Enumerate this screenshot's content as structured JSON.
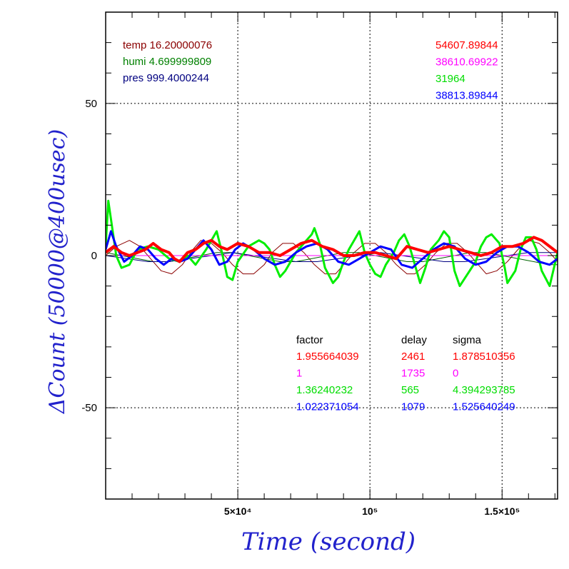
{
  "chart_data": {
    "type": "line",
    "xlabel": "Time (second)",
    "ylabel": "ΔCount (50000@400usec)",
    "xlim": [
      0,
      171000
    ],
    "ylim": [
      -80,
      80
    ],
    "grid": true,
    "x_ticks": [
      {
        "value": 50000,
        "label": "5×10⁴"
      },
      {
        "value": 100000,
        "label": "10⁵"
      },
      {
        "value": 150000,
        "label": "1.5×10⁵"
      }
    ],
    "y_ticks": [
      {
        "value": 50,
        "label": "50"
      },
      {
        "value": 0,
        "label": "0"
      },
      {
        "value": -50,
        "label": "-50"
      }
    ],
    "env_labels": [
      {
        "text": "temp 16.20000076",
        "color": "#8b0000"
      },
      {
        "text": "humi 4.699999809",
        "color": "#008000"
      },
      {
        "text": "pres 999.4000244",
        "color": "#000080"
      }
    ],
    "means": [
      {
        "text": "54607.89844",
        "color": "#ff0000"
      },
      {
        "text": "38610.69922",
        "color": "#ff00ff"
      },
      {
        "text": "31964",
        "color": "#00dd00"
      },
      {
        "text": "38813.89844",
        "color": "#0000ff"
      }
    ],
    "stats_table": {
      "headers": [
        "factor",
        "delay",
        "sigma"
      ],
      "rows": [
        {
          "color": "#ff0000",
          "cells": [
            "1.955664039",
            "2461",
            "1.878510356"
          ]
        },
        {
          "color": "#ff00ff",
          "cells": [
            "1",
            "1735",
            "0"
          ]
        },
        {
          "color": "#00dd00",
          "cells": [
            "1.36240232",
            "565",
            "4.394293785"
          ]
        },
        {
          "color": "#0000ff",
          "cells": [
            "1.022371054",
            "1079",
            "1.525640249"
          ]
        }
      ]
    },
    "series": [
      {
        "color": "#8b0000",
        "width": 1,
        "x": [
          0,
          4000,
          9000,
          13000,
          17000,
          21000,
          25000,
          29000,
          33000,
          36000,
          40000,
          44000,
          48000,
          52000,
          56000,
          60000,
          63000,
          67000,
          71000,
          75000,
          79000,
          83000,
          87000,
          90000,
          94000,
          98000,
          102000,
          106000,
          110000,
          114000,
          117000,
          121000,
          125000,
          129000,
          133000,
          137000,
          141000,
          144000,
          148000,
          152000,
          156000,
          160000,
          164000,
          168000,
          171000
        ],
        "y": [
          0,
          3,
          5,
          3,
          -1,
          -5,
          -6,
          -3,
          2,
          5,
          4,
          1,
          -3,
          -6,
          -6,
          -3,
          1,
          4,
          4,
          1,
          -3,
          -6,
          -6,
          -3,
          1,
          4,
          4,
          1,
          -3,
          -6,
          -6,
          -3,
          1,
          4,
          4,
          1,
          -3,
          -6,
          -5,
          -2,
          2,
          5,
          4,
          1,
          -2
        ]
      },
      {
        "color": "#006400",
        "width": 1,
        "x": [
          0,
          6000,
          12000,
          18000,
          24000,
          30000,
          36000,
          42000,
          48000,
          54000,
          60000,
          66000,
          72000,
          78000,
          84000,
          90000,
          96000,
          102000,
          108000,
          114000,
          120000,
          126000,
          132000,
          138000,
          144000,
          150000,
          156000,
          162000,
          168000,
          171000
        ],
        "y": [
          1,
          0,
          -1,
          -2,
          -2,
          -1,
          0,
          1,
          1,
          0,
          -1,
          -2,
          -2,
          -1,
          0,
          1,
          1,
          0,
          -1,
          -2,
          -2,
          -1,
          0,
          1,
          1,
          0,
          -1,
          -2,
          -3,
          -3
        ]
      },
      {
        "color": "#000080",
        "width": 1,
        "x": [
          0,
          8000,
          16000,
          24000,
          32000,
          40000,
          48000,
          56000,
          64000,
          72000,
          80000,
          88000,
          96000,
          104000,
          112000,
          120000,
          128000,
          136000,
          144000,
          152000,
          160000,
          168000,
          171000
        ],
        "y": [
          0,
          -1,
          -2,
          -2,
          -1,
          0,
          1,
          0,
          -1,
          -2,
          -2,
          -1,
          0,
          1,
          0,
          -1,
          -2,
          -2,
          -1,
          0,
          1,
          1,
          1
        ]
      },
      {
        "color": "#ff00ff",
        "width": 1,
        "x": [
          0,
          171000
        ],
        "y": [
          0,
          0
        ]
      },
      {
        "color": "#00ee00",
        "width": 3,
        "x": [
          0,
          1000,
          2000,
          4000,
          6000,
          9000,
          12000,
          16000,
          20000,
          24000,
          28000,
          31000,
          34000,
          38000,
          40000,
          42000,
          44000,
          46000,
          48000,
          50000,
          54000,
          58000,
          60000,
          62000,
          64000,
          66000,
          68000,
          70000,
          72000,
          75000,
          78000,
          79000,
          81000,
          83000,
          86000,
          88000,
          90000,
          92000,
          94000,
          96000,
          98000,
          100000,
          102000,
          104000,
          106000,
          109000,
          111000,
          113000,
          115000,
          118000,
          119000,
          121000,
          123000,
          126000,
          128000,
          130000,
          132000,
          134000,
          137000,
          140000,
          142000,
          144000,
          146000,
          149000,
          151000,
          152000,
          155000,
          157000,
          159000,
          161000,
          163000,
          165000,
          168000,
          171000
        ],
        "y": [
          3,
          18,
          12,
          0,
          -4,
          -3,
          2,
          3,
          2,
          -1,
          -2,
          0,
          -3,
          2,
          5,
          8,
          1,
          -7,
          -8,
          -2,
          3,
          5,
          4,
          2,
          -3,
          -7,
          -5,
          -2,
          1,
          4,
          7,
          9,
          4,
          -4,
          -9,
          -7,
          -2,
          2,
          5,
          8,
          1,
          -3,
          -6,
          -7,
          -3,
          1,
          5,
          7,
          3,
          -6,
          -9,
          -4,
          2,
          5,
          8,
          6,
          -5,
          -10,
          -6,
          -2,
          3,
          6,
          7,
          4,
          -4,
          -9,
          -5,
          2,
          6,
          6,
          2,
          -5,
          -10,
          1
        ]
      },
      {
        "color": "#0000ff",
        "width": 3,
        "x": [
          0,
          2000,
          4000,
          7000,
          10000,
          13000,
          16000,
          19000,
          22000,
          25000,
          28000,
          31000,
          34000,
          37000,
          40000,
          43000,
          46000,
          49000,
          52000,
          56000,
          60000,
          64000,
          68000,
          72000,
          76000,
          80000,
          84000,
          88000,
          92000,
          96000,
          100000,
          104000,
          108000,
          112000,
          116000,
          120000,
          124000,
          128000,
          132000,
          136000,
          140000,
          144000,
          148000,
          152000,
          156000,
          160000,
          164000,
          168000,
          171000
        ],
        "y": [
          2,
          8,
          3,
          -2,
          0,
          3,
          2,
          -1,
          -3,
          -1,
          -2,
          -1,
          2,
          5,
          2,
          -3,
          -2,
          2,
          4,
          2,
          -1,
          -3,
          -2,
          1,
          3,
          4,
          2,
          -2,
          -3,
          -1,
          1,
          3,
          2,
          -3,
          -4,
          -1,
          2,
          4,
          3,
          -1,
          -3,
          -2,
          1,
          3,
          3,
          1,
          -2,
          -3,
          -1
        ]
      },
      {
        "color": "#ff0000",
        "width": 4,
        "x": [
          0,
          3000,
          6000,
          9000,
          12000,
          15000,
          18000,
          21000,
          24000,
          26000,
          28000,
          31000,
          34000,
          37000,
          40000,
          43000,
          46000,
          50000,
          54000,
          58000,
          62000,
          66000,
          70000,
          74000,
          78000,
          82000,
          86000,
          90000,
          94000,
          98000,
          102000,
          106000,
          110000,
          114000,
          118000,
          122000,
          126000,
          130000,
          134000,
          138000,
          142000,
          146000,
          150000,
          154000,
          158000,
          162000,
          165000,
          168000,
          171000
        ],
        "y": [
          1,
          3,
          1,
          0,
          1,
          2,
          4,
          2,
          1,
          -1,
          -2,
          1,
          2,
          4,
          5,
          3,
          2,
          4,
          3,
          1,
          1,
          0,
          2,
          4,
          5,
          3,
          2,
          0,
          0,
          1,
          1,
          0,
          -1,
          3,
          2,
          1,
          2,
          3,
          2,
          1,
          0,
          1,
          3,
          3,
          4,
          6,
          5,
          3,
          1
        ]
      }
    ]
  }
}
